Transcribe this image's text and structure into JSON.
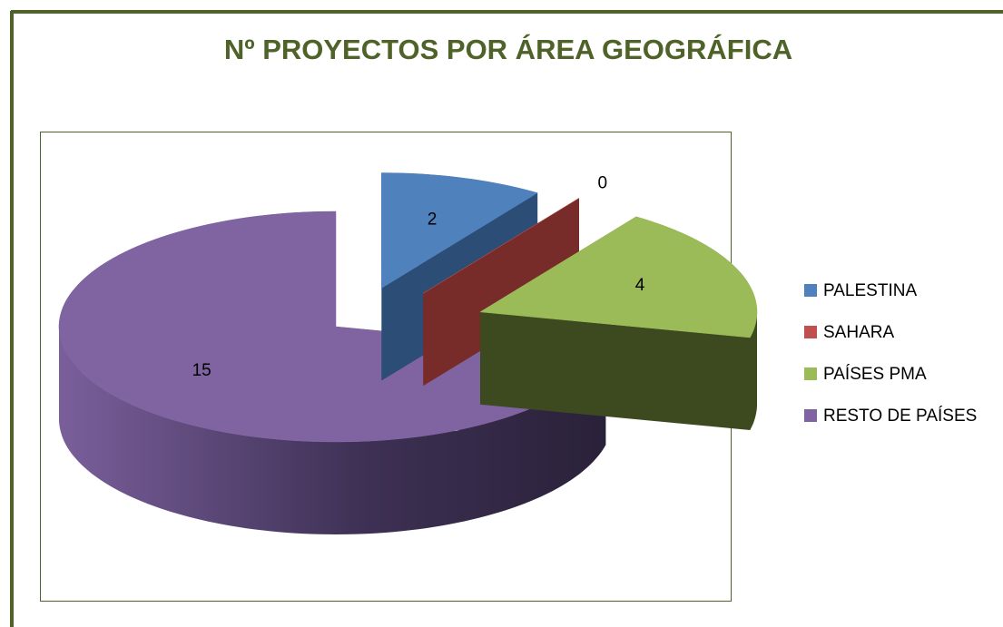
{
  "chart_data": {
    "type": "pie",
    "title": "Nº PROYECTOS POR ÁREA GEOGRÁFICA",
    "categories": [
      "PALESTINA",
      "SAHARA",
      "PAÍSES PMA",
      "RESTO DE PAÍSES"
    ],
    "values": [
      2,
      0,
      4,
      15
    ],
    "colors": [
      "#4f81bd",
      "#c0504d",
      "#9bbb59",
      "#8064a2"
    ],
    "legend": "right",
    "three_d": true
  }
}
